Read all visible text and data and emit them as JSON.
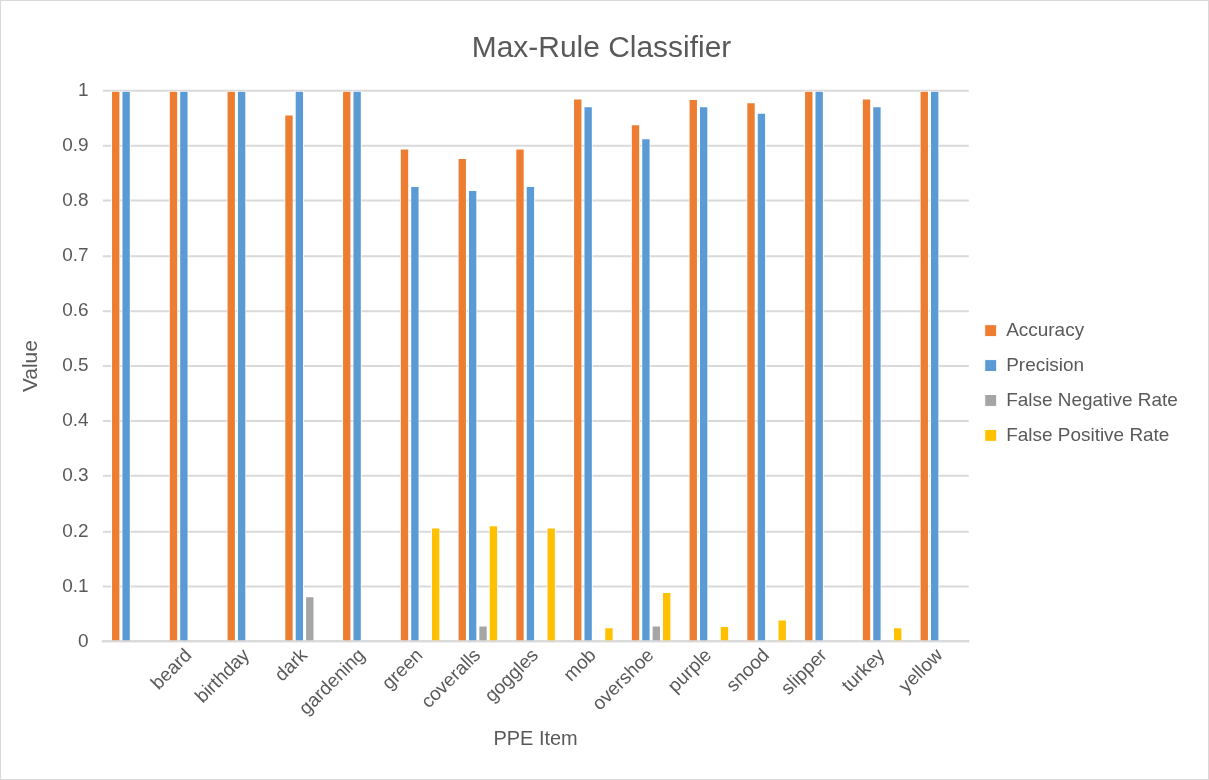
{
  "chart_data": {
    "type": "bar",
    "title": "Max-Rule Classifier",
    "xlabel": "PPE Item",
    "ylabel": "Value",
    "categories": [
      null,
      "beard",
      "birthday",
      "dark",
      "gardening",
      "green",
      "coveralls",
      "goggles",
      "mob",
      "overshoe",
      "purple",
      "snood",
      "slipper",
      "turkey",
      "yellow"
    ],
    "series": [
      {
        "name": "Accuracy",
        "color": "#ed7d31",
        "values": [
          1,
          1,
          1,
          0.957,
          1,
          0.895,
          0.878,
          0.895,
          0.986,
          0.939,
          0.985,
          0.979,
          1,
          0.986,
          1
        ]
      },
      {
        "name": "Precision",
        "color": "#5b9bd5",
        "values": [
          1,
          1,
          1,
          1,
          1,
          0.827,
          0.82,
          0.827,
          0.972,
          0.914,
          0.972,
          0.96,
          1,
          0.972,
          1
        ]
      },
      {
        "name": "False Negative Rate",
        "color": "#a5a5a5",
        "values": [
          0,
          0,
          0,
          0.082,
          0,
          0,
          0.029,
          0,
          0,
          0.029,
          0,
          0,
          0,
          0,
          0
        ]
      },
      {
        "name": "False Positive Rate",
        "color": "#ffc000",
        "values": [
          0,
          0,
          0,
          0,
          0,
          0.207,
          0.211,
          0.207,
          0.026,
          0.09,
          0.028,
          0.04,
          0,
          0.026,
          0
        ]
      }
    ],
    "ylim": [
      0,
      1
    ],
    "yticks": [
      0,
      0.1,
      0.2,
      0.3,
      0.4,
      0.5,
      0.6,
      0.7,
      0.8,
      0.9,
      1
    ],
    "grid": "y",
    "legend": "right"
  }
}
